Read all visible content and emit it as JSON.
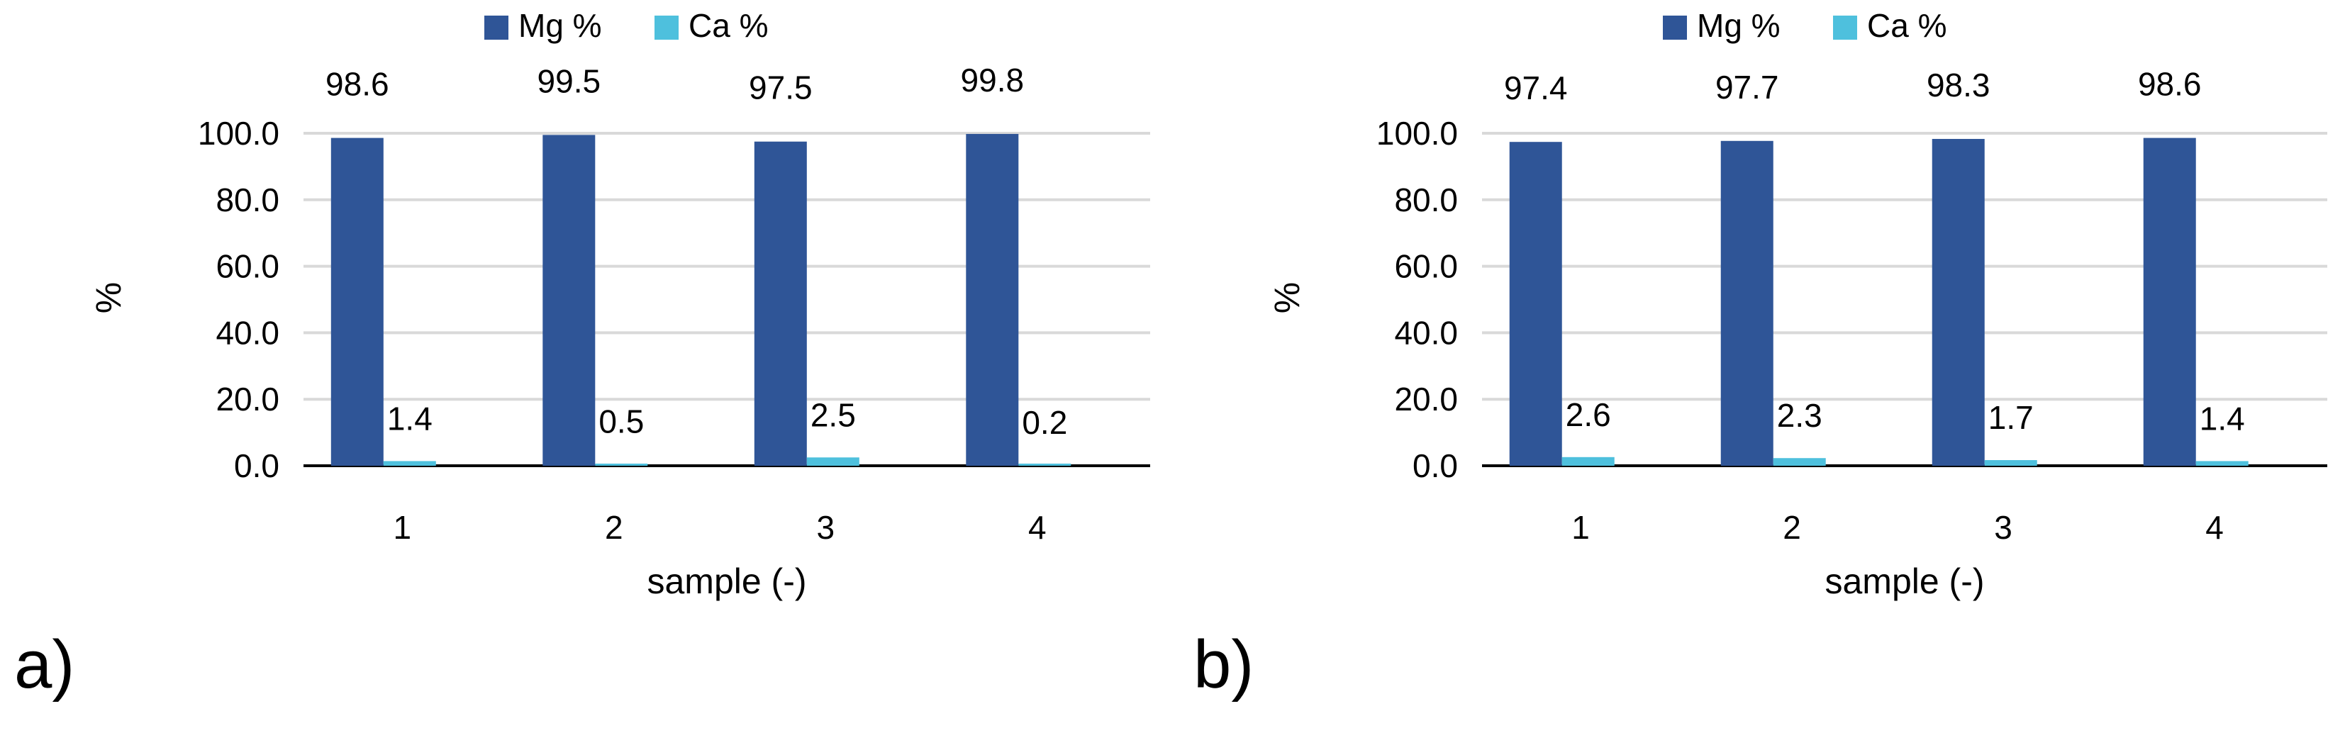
{
  "colors": {
    "mg": "#2F5597",
    "ca": "#4EC0DD",
    "grid": "#D9D9D9",
    "axis": "#000000"
  },
  "chart_data": [
    {
      "type": "bar",
      "panel_label": "a)",
      "categories": [
        "1",
        "2",
        "3",
        "4"
      ],
      "series": [
        {
          "name": "Mg %",
          "values": [
            98.6,
            99.5,
            97.5,
            99.8
          ],
          "labels": [
            "98.6",
            "99.5",
            "97.5",
            "99.8"
          ]
        },
        {
          "name": "Ca %",
          "values": [
            1.4,
            0.5,
            2.5,
            0.2
          ],
          "labels": [
            "1.4",
            "0.5",
            "2.5",
            "0.2"
          ]
        }
      ],
      "xlabel": "sample (-)",
      "ylabel": "%",
      "ylim": [
        0,
        100
      ],
      "yticks": [
        "0.0",
        "20.0",
        "40.0",
        "60.0",
        "80.0",
        "100.0"
      ],
      "grid": true,
      "legend": "top-center"
    },
    {
      "type": "bar",
      "panel_label": "b)",
      "categories": [
        "1",
        "2",
        "3",
        "4"
      ],
      "series": [
        {
          "name": "Mg %",
          "values": [
            97.4,
            97.7,
            98.3,
            98.6
          ],
          "labels": [
            "97.4",
            "97.7",
            "98.3",
            "98.6"
          ]
        },
        {
          "name": "Ca %",
          "values": [
            2.6,
            2.3,
            1.7,
            1.4
          ],
          "labels": [
            "2.6",
            "2.3",
            "1.7",
            "1.4"
          ]
        }
      ],
      "xlabel": "sample (-)",
      "ylabel": "%",
      "ylim": [
        0,
        100
      ],
      "yticks": [
        "0.0",
        "20.0",
        "40.0",
        "60.0",
        "80.0",
        "100.0"
      ],
      "grid": true,
      "legend": "top-center"
    }
  ]
}
